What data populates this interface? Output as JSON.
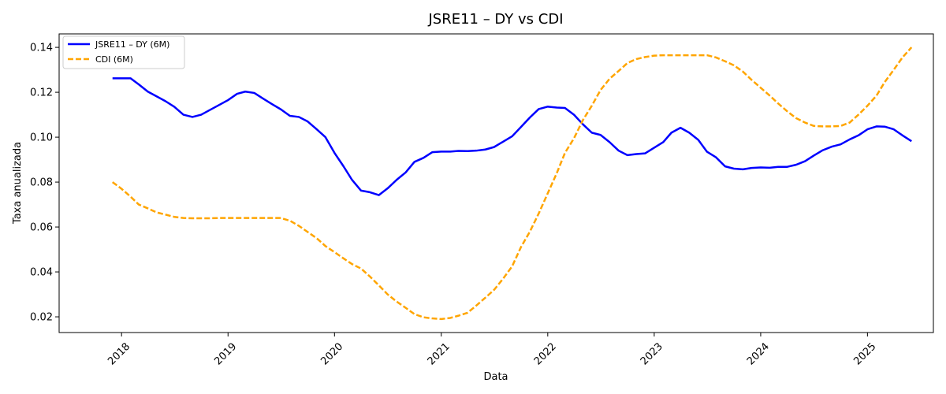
{
  "chart_data": {
    "type": "line",
    "title": "JSRE11 – DY vs CDI",
    "xlabel": "Data",
    "ylabel": "Taxa anualizada",
    "x_axis": "date",
    "xlim": [
      "2017-06-01",
      "2025-08-15"
    ],
    "ylim": [
      0.013,
      0.146
    ],
    "x_ticks": [
      {
        "date": "2018-01-01",
        "label": "2018"
      },
      {
        "date": "2019-01-01",
        "label": "2019"
      },
      {
        "date": "2020-01-01",
        "label": "2020"
      },
      {
        "date": "2021-01-01",
        "label": "2021"
      },
      {
        "date": "2022-01-01",
        "label": "2022"
      },
      {
        "date": "2023-01-01",
        "label": "2023"
      },
      {
        "date": "2024-01-01",
        "label": "2024"
      },
      {
        "date": "2025-01-01",
        "label": "2025"
      }
    ],
    "x_tick_rotation_deg": 45,
    "y_ticks": [
      {
        "value": 0.02,
        "label": "0.02"
      },
      {
        "value": 0.04,
        "label": "0.04"
      },
      {
        "value": 0.06,
        "label": "0.06"
      },
      {
        "value": 0.08,
        "label": "0.08"
      },
      {
        "value": 0.1,
        "label": "0.10"
      },
      {
        "value": 0.12,
        "label": "0.12"
      },
      {
        "value": 0.14,
        "label": "0.14"
      }
    ],
    "grid": false,
    "legend_position": "top-left",
    "series": [
      {
        "name": "JSRE11 – DY (6M)",
        "color": "#0000ff",
        "style": "solid",
        "points": [
          [
            "2017-12-01",
            0.1262
          ],
          [
            "2018-01-01",
            0.1262
          ],
          [
            "2018-02-01",
            0.1262
          ],
          [
            "2018-03-01",
            0.1235
          ],
          [
            "2018-04-01",
            0.1203
          ],
          [
            "2018-05-01",
            0.1182
          ],
          [
            "2018-06-01",
            0.116
          ],
          [
            "2018-07-01",
            0.1135
          ],
          [
            "2018-08-01",
            0.11
          ],
          [
            "2018-09-01",
            0.109
          ],
          [
            "2018-10-01",
            0.11
          ],
          [
            "2018-11-01",
            0.1122
          ],
          [
            "2018-12-01",
            0.1143
          ],
          [
            "2019-01-01",
            0.1165
          ],
          [
            "2019-02-01",
            0.1193
          ],
          [
            "2019-03-01",
            0.1203
          ],
          [
            "2019-04-01",
            0.1197
          ],
          [
            "2019-05-01",
            0.1172
          ],
          [
            "2019-06-01",
            0.1147
          ],
          [
            "2019-07-01",
            0.1124
          ],
          [
            "2019-08-01",
            0.1095
          ],
          [
            "2019-09-01",
            0.109
          ],
          [
            "2019-10-01",
            0.107
          ],
          [
            "2019-11-01",
            0.1035
          ],
          [
            "2019-12-01",
            0.1
          ],
          [
            "2020-01-01",
            0.093
          ],
          [
            "2020-02-01",
            0.087
          ],
          [
            "2020-03-01",
            0.081
          ],
          [
            "2020-04-01",
            0.0762
          ],
          [
            "2020-05-01",
            0.0755
          ],
          [
            "2020-06-01",
            0.0742
          ],
          [
            "2020-07-01",
            0.0772
          ],
          [
            "2020-08-01",
            0.081
          ],
          [
            "2020-09-01",
            0.0843
          ],
          [
            "2020-10-01",
            0.089
          ],
          [
            "2020-11-01",
            0.0908
          ],
          [
            "2020-12-01",
            0.0933
          ],
          [
            "2021-01-01",
            0.0936
          ],
          [
            "2021-02-01",
            0.0936
          ],
          [
            "2021-03-01",
            0.0939
          ],
          [
            "2021-04-01",
            0.0938
          ],
          [
            "2021-05-01",
            0.094
          ],
          [
            "2021-06-01",
            0.0945
          ],
          [
            "2021-07-01",
            0.0956
          ],
          [
            "2021-08-01",
            0.098
          ],
          [
            "2021-09-01",
            0.1004
          ],
          [
            "2021-10-01",
            0.1045
          ],
          [
            "2021-11-01",
            0.1088
          ],
          [
            "2021-12-01",
            0.1125
          ],
          [
            "2022-01-01",
            0.1136
          ],
          [
            "2022-02-01",
            0.1132
          ],
          [
            "2022-03-01",
            0.113
          ],
          [
            "2022-04-01",
            0.11
          ],
          [
            "2022-05-01",
            0.1058
          ],
          [
            "2022-06-01",
            0.102
          ],
          [
            "2022-07-01",
            0.101
          ],
          [
            "2022-08-01",
            0.0978
          ],
          [
            "2022-09-01",
            0.094
          ],
          [
            "2022-10-01",
            0.092
          ],
          [
            "2022-11-01",
            0.0925
          ],
          [
            "2022-12-01",
            0.0928
          ],
          [
            "2023-01-01",
            0.0953
          ],
          [
            "2023-02-01",
            0.0978
          ],
          [
            "2023-03-01",
            0.102
          ],
          [
            "2023-04-01",
            0.1042
          ],
          [
            "2023-05-01",
            0.102
          ],
          [
            "2023-06-01",
            0.0988
          ],
          [
            "2023-07-01",
            0.0935
          ],
          [
            "2023-08-01",
            0.091
          ],
          [
            "2023-09-01",
            0.087
          ],
          [
            "2023-10-01",
            0.086
          ],
          [
            "2023-11-01",
            0.0857
          ],
          [
            "2023-12-01",
            0.0863
          ],
          [
            "2024-01-01",
            0.0865
          ],
          [
            "2024-02-01",
            0.0864
          ],
          [
            "2024-03-01",
            0.0868
          ],
          [
            "2024-04-01",
            0.0868
          ],
          [
            "2024-05-01",
            0.0877
          ],
          [
            "2024-06-01",
            0.0893
          ],
          [
            "2024-07-01",
            0.0918
          ],
          [
            "2024-08-01",
            0.0942
          ],
          [
            "2024-09-01",
            0.0958
          ],
          [
            "2024-10-01",
            0.0968
          ],
          [
            "2024-11-01",
            0.099
          ],
          [
            "2024-12-01",
            0.1008
          ],
          [
            "2025-01-01",
            0.1035
          ],
          [
            "2025-02-01",
            0.1048
          ],
          [
            "2025-03-01",
            0.1047
          ],
          [
            "2025-04-01",
            0.1035
          ],
          [
            "2025-05-01",
            0.1008
          ],
          [
            "2025-06-01",
            0.0982
          ]
        ]
      },
      {
        "name": "CDI (6M)",
        "color": "#ffa500",
        "style": "dashed",
        "points": [
          [
            "2017-12-01",
            0.08
          ],
          [
            "2018-01-01",
            0.077
          ],
          [
            "2018-02-01",
            0.0735
          ],
          [
            "2018-03-01",
            0.07
          ],
          [
            "2018-04-01",
            0.0683
          ],
          [
            "2018-05-01",
            0.0665
          ],
          [
            "2018-06-01",
            0.0655
          ],
          [
            "2018-07-01",
            0.0645
          ],
          [
            "2018-08-01",
            0.064
          ],
          [
            "2018-09-01",
            0.0639
          ],
          [
            "2018-10-01",
            0.0639
          ],
          [
            "2018-11-01",
            0.0639
          ],
          [
            "2018-12-01",
            0.064
          ],
          [
            "2019-01-01",
            0.064
          ],
          [
            "2019-02-01",
            0.064
          ],
          [
            "2019-03-01",
            0.064
          ],
          [
            "2019-04-01",
            0.064
          ],
          [
            "2019-05-01",
            0.064
          ],
          [
            "2019-06-01",
            0.064
          ],
          [
            "2019-07-01",
            0.064
          ],
          [
            "2019-08-01",
            0.0628
          ],
          [
            "2019-09-01",
            0.0605
          ],
          [
            "2019-10-01",
            0.0578
          ],
          [
            "2019-11-01",
            0.055
          ],
          [
            "2019-12-01",
            0.0515
          ],
          [
            "2020-01-01",
            0.0488
          ],
          [
            "2020-02-01",
            0.046
          ],
          [
            "2020-03-01",
            0.0435
          ],
          [
            "2020-04-01",
            0.0415
          ],
          [
            "2020-05-01",
            0.038
          ],
          [
            "2020-06-01",
            0.034
          ],
          [
            "2020-07-01",
            0.03
          ],
          [
            "2020-08-01",
            0.0268
          ],
          [
            "2020-09-01",
            0.024
          ],
          [
            "2020-10-01",
            0.0212
          ],
          [
            "2020-11-01",
            0.0198
          ],
          [
            "2020-12-01",
            0.0193
          ],
          [
            "2021-01-01",
            0.019
          ],
          [
            "2021-02-01",
            0.0195
          ],
          [
            "2021-03-01",
            0.0205
          ],
          [
            "2021-04-01",
            0.0218
          ],
          [
            "2021-05-01",
            0.025
          ],
          [
            "2021-06-01",
            0.0285
          ],
          [
            "2021-07-01",
            0.032
          ],
          [
            "2021-08-01",
            0.037
          ],
          [
            "2021-09-01",
            0.0425
          ],
          [
            "2021-10-01",
            0.051
          ],
          [
            "2021-11-01",
            0.058
          ],
          [
            "2021-12-01",
            0.066
          ],
          [
            "2022-01-01",
            0.075
          ],
          [
            "2022-02-01",
            0.084
          ],
          [
            "2022-03-01",
            0.093
          ],
          [
            "2022-04-01",
            0.0995
          ],
          [
            "2022-05-01",
            0.1075
          ],
          [
            "2022-06-01",
            0.114
          ],
          [
            "2022-07-01",
            0.121
          ],
          [
            "2022-08-01",
            0.126
          ],
          [
            "2022-09-01",
            0.1295
          ],
          [
            "2022-10-01",
            0.133
          ],
          [
            "2022-11-01",
            0.1348
          ],
          [
            "2022-12-01",
            0.1357
          ],
          [
            "2023-01-01",
            0.1363
          ],
          [
            "2023-02-01",
            0.1365
          ],
          [
            "2023-03-01",
            0.1365
          ],
          [
            "2023-04-01",
            0.1365
          ],
          [
            "2023-05-01",
            0.1365
          ],
          [
            "2023-06-01",
            0.1365
          ],
          [
            "2023-07-01",
            0.1365
          ],
          [
            "2023-08-01",
            0.1355
          ],
          [
            "2023-09-01",
            0.1338
          ],
          [
            "2023-10-01",
            0.132
          ],
          [
            "2023-11-01",
            0.1292
          ],
          [
            "2023-12-01",
            0.1255
          ],
          [
            "2024-01-01",
            0.122
          ],
          [
            "2024-02-01",
            0.1185
          ],
          [
            "2024-03-01",
            0.115
          ],
          [
            "2024-04-01",
            0.1115
          ],
          [
            "2024-05-01",
            0.1085
          ],
          [
            "2024-06-01",
            0.1065
          ],
          [
            "2024-07-01",
            0.105
          ],
          [
            "2024-08-01",
            0.1048
          ],
          [
            "2024-09-01",
            0.1048
          ],
          [
            "2024-10-01",
            0.105
          ],
          [
            "2024-11-01",
            0.1065
          ],
          [
            "2024-12-01",
            0.11
          ],
          [
            "2025-01-01",
            0.114
          ],
          [
            "2025-02-01",
            0.1185
          ],
          [
            "2025-03-01",
            0.1245
          ],
          [
            "2025-04-01",
            0.13
          ],
          [
            "2025-05-01",
            0.1355
          ],
          [
            "2025-06-01",
            0.14
          ]
        ]
      }
    ]
  }
}
